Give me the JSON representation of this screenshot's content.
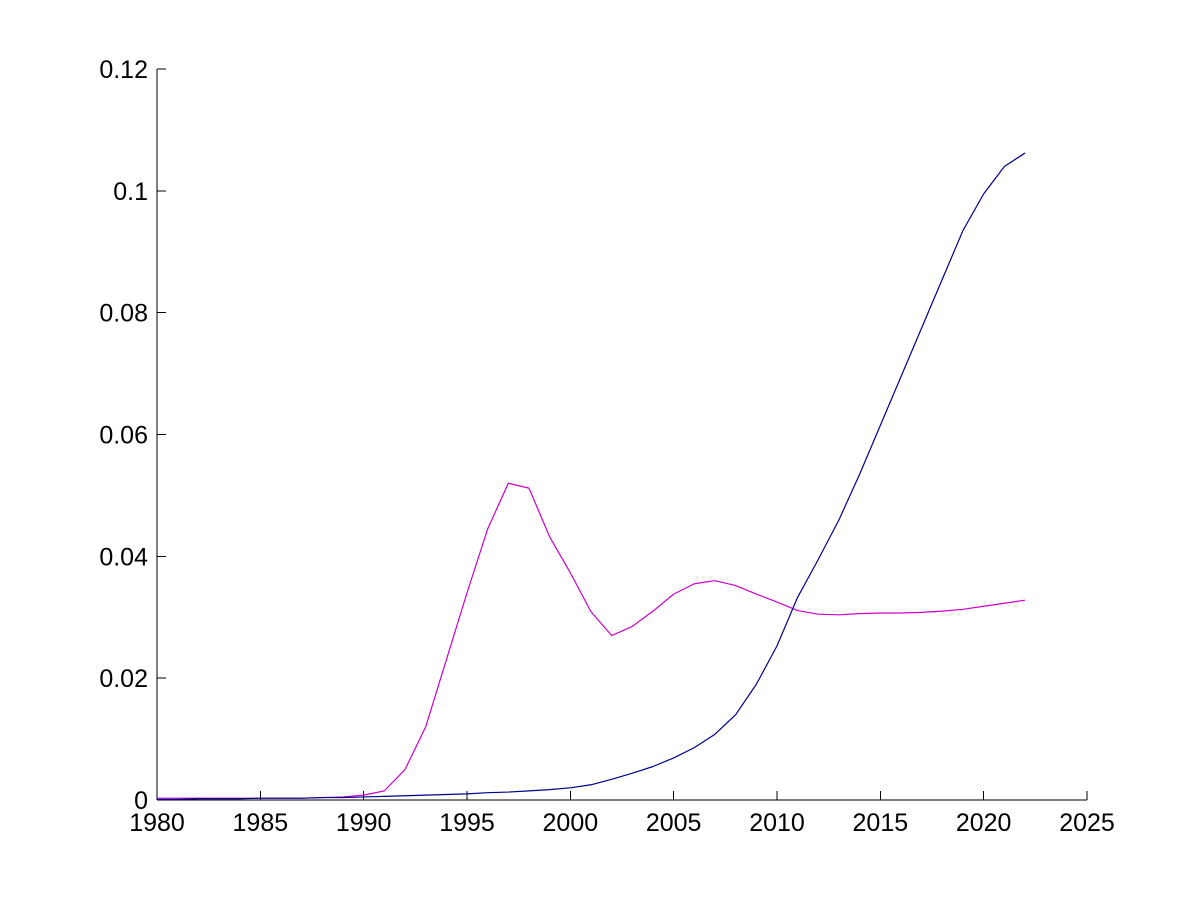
{
  "figure": {
    "background_color": "#ffffff",
    "axis_color": "#000000",
    "tick_label_color": "#000000"
  },
  "chart_data": {
    "type": "line",
    "title": "",
    "xlabel": "",
    "ylabel": "",
    "grid": false,
    "legend": "none",
    "axes_box": "off",
    "xlim": [
      1980,
      2025
    ],
    "ylim": [
      0,
      0.12
    ],
    "x_ticks": [
      1980,
      1985,
      1990,
      1995,
      2000,
      2005,
      2010,
      2015,
      2020,
      2025
    ],
    "x_tick_labels": [
      "1980",
      "1985",
      "1990",
      "1995",
      "2000",
      "2005",
      "2010",
      "2015",
      "2020",
      "2025"
    ],
    "y_ticks": [
      0,
      0.02,
      0.04,
      0.06,
      0.08,
      0.1,
      0.12
    ],
    "y_tick_labels": [
      "0",
      "0.02",
      "0.04",
      "0.06",
      "0.08",
      "0.1",
      "0.12"
    ],
    "x": [
      1980,
      1981,
      1982,
      1983,
      1984,
      1985,
      1986,
      1987,
      1988,
      1989,
      1990,
      1991,
      1992,
      1993,
      1994,
      1995,
      1996,
      1997,
      1998,
      1999,
      2000,
      2001,
      2002,
      2003,
      2004,
      2005,
      2006,
      2007,
      2008,
      2009,
      2010,
      2011,
      2012,
      2013,
      2014,
      2015,
      2016,
      2017,
      2018,
      2019,
      2020,
      2021,
      2022
    ],
    "series": [
      {
        "name": "magenta-series",
        "color": "#CC00CC",
        "values": [
          0.0003,
          0.0003,
          0.0003,
          0.0003,
          0.0003,
          0.0003,
          0.0003,
          0.0003,
          0.0004,
          0.0005,
          0.0008,
          0.0015,
          0.005,
          0.012,
          0.023,
          0.034,
          0.0445,
          0.052,
          0.0512,
          0.0432,
          0.0373,
          0.0309,
          0.027,
          0.0285,
          0.031,
          0.0338,
          0.0355,
          0.036,
          0.0352,
          0.0338,
          0.0325,
          0.0311,
          0.0305,
          0.0304,
          0.0306,
          0.0307,
          0.0307,
          0.0308,
          0.031,
          0.0313,
          0.0318,
          0.0323,
          0.0328
        ]
      },
      {
        "name": "dark-blue-series",
        "color": "#00008B",
        "values": [
          0.0001,
          0.0001,
          0.0002,
          0.0002,
          0.0002,
          0.0003,
          0.0003,
          0.0003,
          0.0004,
          0.0004,
          0.0005,
          0.0006,
          0.0007,
          0.0008,
          0.0009,
          0.001,
          0.0012,
          0.0013,
          0.0015,
          0.0017,
          0.002,
          0.0025,
          0.0034,
          0.0044,
          0.0055,
          0.0069,
          0.0086,
          0.0108,
          0.014,
          0.019,
          0.0253,
          0.0333,
          0.0395,
          0.046,
          0.0535,
          0.0615,
          0.0695,
          0.0775,
          0.0855,
          0.0935,
          0.0995,
          0.104,
          0.1062
        ]
      }
    ]
  }
}
